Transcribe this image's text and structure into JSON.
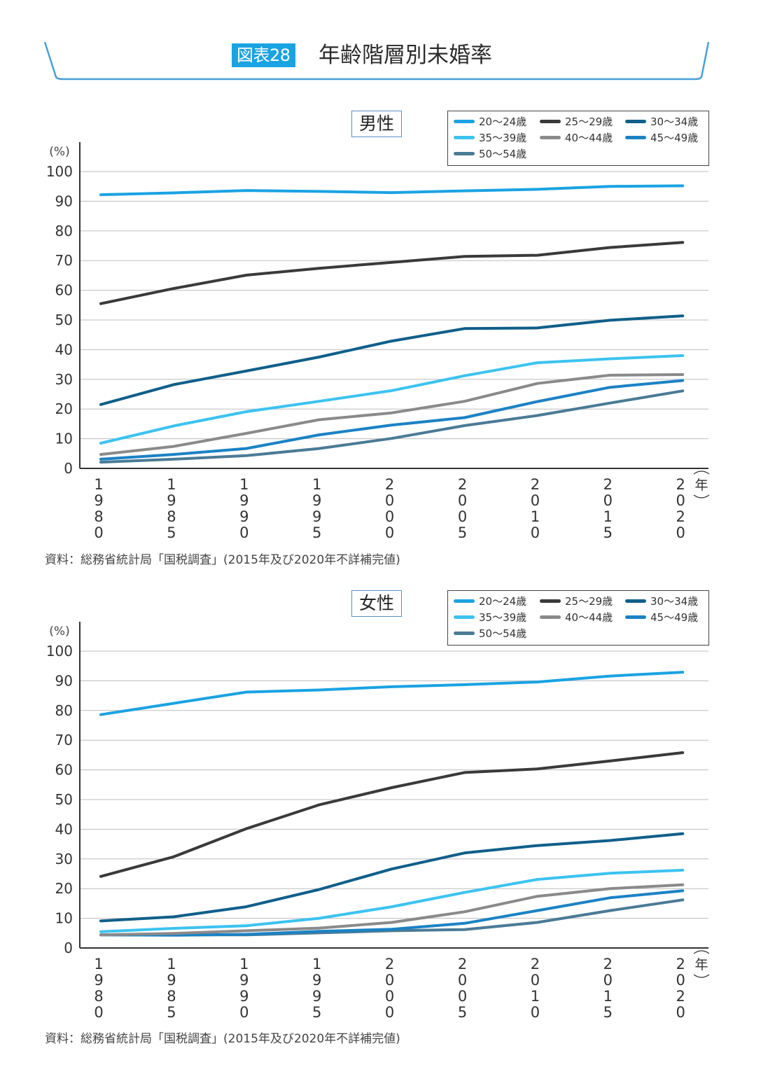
{
  "figure": {
    "badge": "図表28",
    "title": "年齢階層別未婚率"
  },
  "colors": {
    "accent": "#1aa3e2",
    "grid": "#bdbdbd",
    "axis": "#333333",
    "bracket": "#4a9fd8"
  },
  "charts": [
    {
      "gender": "男性",
      "source": "資料：総務省統計局「国税調査」(2015年及び2020年不詳補完値)"
    },
    {
      "gender": "女性",
      "source": "資料：総務省統計局「国税調査」(2015年及び2020年不詳補完値)"
    }
  ],
  "chart_data": [
    {
      "type": "line",
      "title": "男性",
      "xlabel": "年",
      "ylabel": "(%)",
      "ylim": [
        0,
        100
      ],
      "yticks": [
        "0",
        "10",
        "20",
        "30",
        "40",
        "50",
        "60",
        "70",
        "80",
        "90",
        "100"
      ],
      "categories": [
        "1980",
        "1985",
        "1990",
        "1995",
        "2000",
        "2005",
        "2010",
        "2015",
        "2020"
      ],
      "grid": true,
      "legend_position": "top-right",
      "series": [
        {
          "name": "20～24歳",
          "color": "#1aa3e2",
          "values": [
            92.2,
            92.8,
            93.6,
            93.3,
            92.9,
            93.5,
            94.0,
            95.0,
            95.2
          ]
        },
        {
          "name": "25～29歳",
          "color": "#3a3a3a",
          "values": [
            55.5,
            60.6,
            65.1,
            67.4,
            69.4,
            71.4,
            71.8,
            74.4,
            76.1
          ]
        },
        {
          "name": "30～34歳",
          "color": "#0f5f8a",
          "values": [
            21.5,
            28.2,
            32.8,
            37.5,
            42.9,
            47.1,
            47.3,
            49.9,
            51.4
          ]
        },
        {
          "name": "35～39歳",
          "color": "#3cc3f0",
          "values": [
            8.5,
            14.3,
            19.1,
            22.6,
            26.2,
            31.2,
            35.6,
            36.9,
            38.0
          ]
        },
        {
          "name": "40～44歳",
          "color": "#8a8a8a",
          "values": [
            4.7,
            7.4,
            11.8,
            16.4,
            18.7,
            22.6,
            28.6,
            31.4,
            31.6
          ]
        },
        {
          "name": "45～49歳",
          "color": "#1b82c4",
          "values": [
            3.1,
            4.7,
            6.7,
            11.3,
            14.6,
            17.1,
            22.5,
            27.3,
            29.6
          ]
        },
        {
          "name": "50～54歳",
          "color": "#4a7b96",
          "values": [
            2.1,
            3.1,
            4.3,
            6.7,
            10.1,
            14.4,
            17.8,
            22.0,
            26.1
          ]
        }
      ]
    },
    {
      "type": "line",
      "title": "女性",
      "xlabel": "年",
      "ylabel": "(%)",
      "ylim": [
        0,
        100
      ],
      "yticks": [
        "0",
        "10",
        "20",
        "30",
        "40",
        "50",
        "60",
        "70",
        "80",
        "90",
        "100"
      ],
      "categories": [
        "1980",
        "1985",
        "1990",
        "1995",
        "2000",
        "2005",
        "2010",
        "2015",
        "2020"
      ],
      "grid": true,
      "legend_position": "top-right",
      "series": [
        {
          "name": "20～24歳",
          "color": "#1aa3e2",
          "values": [
            78.6,
            82.4,
            86.2,
            86.9,
            88.0,
            88.7,
            89.6,
            91.6,
            92.9
          ]
        },
        {
          "name": "25～29歳",
          "color": "#3a3a3a",
          "values": [
            24.1,
            30.7,
            40.2,
            48.2,
            54.0,
            59.1,
            60.3,
            63.0,
            65.8
          ]
        },
        {
          "name": "30～34歳",
          "color": "#0f5f8a",
          "values": [
            9.1,
            10.5,
            13.9,
            19.7,
            26.6,
            32.0,
            34.5,
            36.2,
            38.5
          ]
        },
        {
          "name": "35～39歳",
          "color": "#3cc3f0",
          "values": [
            5.5,
            6.6,
            7.5,
            10.0,
            13.9,
            18.7,
            23.1,
            25.2,
            26.2
          ]
        },
        {
          "name": "40～44歳",
          "color": "#8a8a8a",
          "values": [
            4.4,
            4.9,
            5.8,
            6.7,
            8.6,
            12.2,
            17.4,
            20.0,
            21.3
          ]
        },
        {
          "name": "45～49歳",
          "color": "#1b82c4",
          "values": [
            4.4,
            4.3,
            4.6,
            5.6,
            6.3,
            8.3,
            12.6,
            16.9,
            19.3
          ]
        },
        {
          "name": "50～54歳",
          "color": "#4a7b96",
          "values": [
            4.4,
            4.4,
            4.4,
            5.1,
            5.8,
            6.2,
            8.6,
            12.6,
            16.2
          ]
        }
      ]
    }
  ]
}
